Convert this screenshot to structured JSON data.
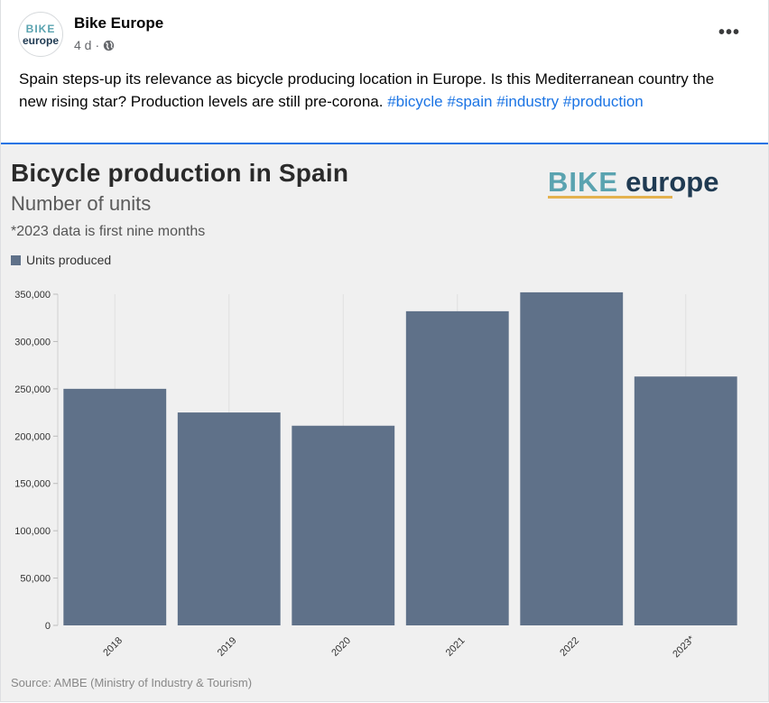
{
  "post": {
    "page_name": "Bike Europe",
    "time": "4 d",
    "dot": "·",
    "avatar_line1": "BIKE",
    "avatar_line2": "europe",
    "more_label": "•••",
    "text_main": "Spain steps-up its relevance as bicycle producing location in Europe. Is this Mediterranean country the new rising star? Production levels are still pre-corona.",
    "hashtags": [
      "#bicycle",
      "#spain",
      "#industry",
      "#production"
    ]
  },
  "brand": {
    "word1": "BIKE",
    "word2": "europe"
  },
  "colors": {
    "bar": "#5f7189",
    "link": "#1b74e4",
    "teal": "#5aa3b0",
    "navy": "#1f3a52"
  },
  "chart_data": {
    "type": "bar",
    "title": "Bicycle production in Spain",
    "subtitle": "Number of units",
    "note": "*2023 data is first nine months",
    "source": "Source: AMBE (Ministry of Industry & Tourism)",
    "categories": [
      "2018",
      "2019",
      "2020",
      "2021",
      "2022",
      "2023*"
    ],
    "series": [
      {
        "name": "Units produced",
        "values": [
          250000,
          225000,
          211000,
          332000,
          352000,
          263000
        ]
      }
    ],
    "ylim": [
      0,
      350000
    ],
    "yticks": [
      0,
      50000,
      100000,
      150000,
      200000,
      250000,
      300000,
      350000
    ],
    "ytick_labels": [
      "0",
      "50,000",
      "100,000",
      "150,000",
      "200,000",
      "250,000",
      "300,000",
      "350,000"
    ],
    "grid": true,
    "legend": "top-left"
  }
}
